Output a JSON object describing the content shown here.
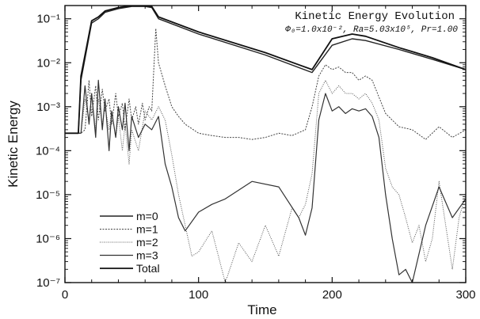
{
  "chart_data": {
    "type": "line",
    "title": "Kinetic Energy Evolution",
    "subtitle": "Φ₀=1.0x10⁻², Ra=5.03x10⁵, Pr=1.00",
    "xlabel": "Time",
    "ylabel": "Kinetic Energy",
    "xlim": [
      0,
      300
    ],
    "ylim": [
      1e-07,
      0.2
    ],
    "yscale": "log",
    "xticks": [
      "0",
      "100",
      "200",
      "300"
    ],
    "yticks": [
      "10⁻⁷",
      "10⁻⁶",
      "10⁻⁵",
      "10⁻⁴",
      "10⁻³",
      "10⁻²",
      "10⁻¹"
    ],
    "grid": false,
    "legend_position": "bottom-left",
    "series": [
      {
        "name": "m=0",
        "x": [
          0,
          10,
          12,
          20,
          25,
          30,
          40,
          50,
          60,
          65,
          70,
          100,
          150,
          185,
          200,
          215,
          225,
          250,
          275,
          300
        ],
        "y": [
          0.00025,
          0.00025,
          0.004,
          0.08,
          0.1,
          0.14,
          0.17,
          0.19,
          0.19,
          0.18,
          0.1,
          0.045,
          0.015,
          0.006,
          0.025,
          0.035,
          0.032,
          0.02,
          0.012,
          0.007
        ]
      },
      {
        "name": "m=1",
        "x": [
          0,
          12,
          15,
          18,
          20,
          23,
          25,
          28,
          30,
          33,
          35,
          38,
          40,
          43,
          45,
          48,
          50,
          53,
          55,
          58,
          60,
          63,
          65,
          68,
          70,
          75,
          80,
          85,
          90,
          100,
          110,
          120,
          130,
          140,
          150,
          160,
          170,
          180,
          185,
          190,
          195,
          200,
          205,
          210,
          215,
          220,
          225,
          230,
          240,
          250,
          260,
          270,
          280,
          290,
          300
        ],
        "y": [
          0.00025,
          0.00025,
          0.0003,
          0.004,
          0.0006,
          0.003,
          0.0005,
          0.0025,
          0.0008,
          0.0015,
          0.0004,
          0.002,
          0.0006,
          0.0012,
          0.0003,
          0.0015,
          0.0005,
          0.001,
          0.0004,
          0.0012,
          0.0005,
          0.001,
          0.0008,
          0.06,
          0.01,
          0.003,
          0.001,
          0.0006,
          0.0004,
          0.00025,
          0.00022,
          0.0002,
          0.0002,
          0.00018,
          0.0002,
          0.00025,
          0.00022,
          0.0003,
          0.001,
          0.005,
          0.009,
          0.007,
          0.008,
          0.006,
          0.006,
          0.004,
          0.005,
          0.004,
          0.0007,
          0.00035,
          0.0003,
          0.00018,
          0.00035,
          0.0002,
          0.0003
        ]
      },
      {
        "name": "m=2",
        "x": [
          0,
          12,
          15,
          18,
          20,
          23,
          25,
          28,
          30,
          33,
          35,
          38,
          40,
          43,
          45,
          48,
          50,
          55,
          60,
          65,
          70,
          75,
          80,
          85,
          90,
          95,
          100,
          110,
          120,
          130,
          140,
          150,
          160,
          170,
          175,
          180,
          185,
          190,
          195,
          200,
          205,
          210,
          215,
          220,
          225,
          230,
          235,
          240,
          245,
          250,
          255,
          260,
          265,
          270,
          275,
          280,
          285,
          290,
          295,
          300
        ],
        "y": [
          0.00025,
          0.00025,
          0.0015,
          0.0005,
          0.002,
          0.0003,
          0.0015,
          0.0004,
          0.001,
          0.0003,
          0.0008,
          0.0002,
          0.0006,
          0.0001,
          0.0004,
          5e-05,
          0.0003,
          0.0001,
          0.0008,
          0.0005,
          0.001,
          0.0005,
          8e-05,
          1e-05,
          2e-06,
          4e-07,
          5e-07,
          1.5e-06,
          1e-07,
          8e-07,
          3e-07,
          2e-06,
          4e-07,
          5e-06,
          3e-06,
          6e-06,
          3e-05,
          0.002,
          0.004,
          0.002,
          0.003,
          0.002,
          0.002,
          0.0015,
          0.002,
          0.0012,
          0.0005,
          4e-05,
          1.5e-05,
          1e-05,
          3e-06,
          8e-07,
          2e-06,
          3e-07,
          1e-06,
          2e-05,
          2e-06,
          2e-07,
          3e-06,
          1e-05
        ]
      },
      {
        "name": "m=3",
        "x": [
          0,
          12,
          15,
          18,
          20,
          23,
          25,
          28,
          30,
          33,
          35,
          38,
          40,
          43,
          45,
          48,
          50,
          55,
          60,
          65,
          70,
          75,
          80,
          85,
          90,
          100,
          110,
          120,
          140,
          160,
          175,
          180,
          185,
          190,
          195,
          200,
          205,
          210,
          215,
          220,
          225,
          230,
          235,
          240,
          245,
          250,
          255,
          260,
          270,
          280,
          290,
          300
        ],
        "y": [
          0.00025,
          0.00025,
          0.003,
          0.0004,
          0.002,
          0.0002,
          0.004,
          0.0003,
          0.0015,
          0.0001,
          0.0008,
          0.0002,
          0.001,
          0.0003,
          0.0012,
          0.0001,
          0.0006,
          0.0002,
          0.0004,
          0.0003,
          0.0006,
          5e-05,
          1.5e-05,
          3e-06,
          1.5e-06,
          4e-06,
          6e-06,
          8e-06,
          2e-05,
          1.5e-05,
          3e-06,
          1.2e-06,
          5e-06,
          0.0005,
          0.002,
          0.0008,
          0.001,
          0.0007,
          0.0009,
          0.0008,
          0.0009,
          0.0006,
          0.0002,
          1e-05,
          1e-06,
          1.5e-07,
          2e-07,
          1e-07,
          2e-06,
          1.5e-05,
          3e-06,
          8e-06
        ]
      },
      {
        "name": "Total",
        "x": [
          0,
          10,
          12,
          20,
          25,
          30,
          40,
          50,
          60,
          65,
          70,
          100,
          150,
          185,
          200,
          215,
          225,
          250,
          275,
          300
        ],
        "y": [
          0.00025,
          0.00025,
          0.005,
          0.09,
          0.11,
          0.15,
          0.18,
          0.2,
          0.2,
          0.19,
          0.11,
          0.05,
          0.017,
          0.007,
          0.035,
          0.045,
          0.04,
          0.022,
          0.013,
          0.007
        ]
      }
    ]
  }
}
